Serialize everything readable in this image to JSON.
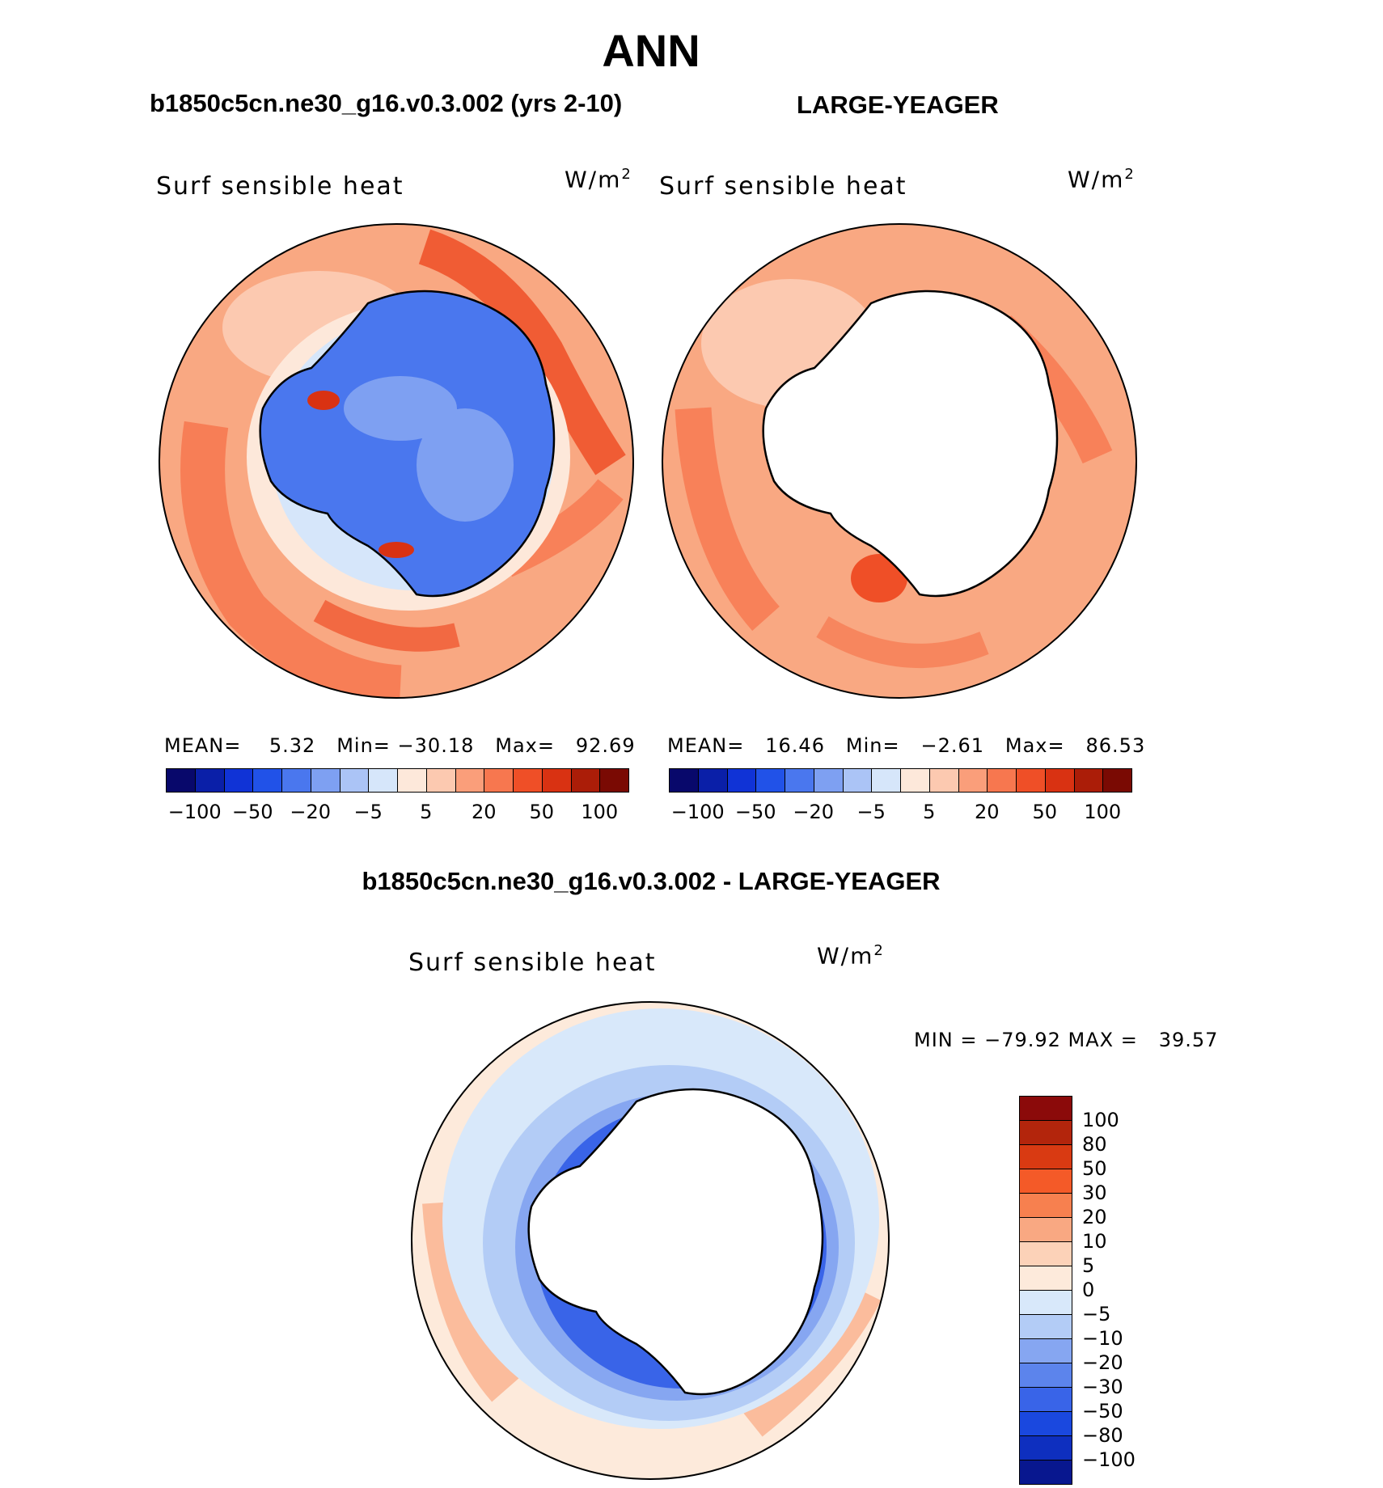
{
  "main_title": "ANN",
  "case_title": "b1850c5cn.ne30_g16.v0.3.002 (yrs 2-10)",
  "ref_title": "LARGE-YEAGER",
  "diff_title": "b1850c5cn.ne30_g16.v0.3.002 - LARGE-YEAGER",
  "variable": "Surf sensible heat",
  "units_base": "W/m",
  "units_exp": "2",
  "panel_case": {
    "mean_label": "MEAN=",
    "mean": "5.32",
    "min_label": "Min=",
    "min": "−30.18",
    "max_label": "Max=",
    "max": "92.69"
  },
  "panel_ref": {
    "mean_label": "MEAN=",
    "mean": "16.46",
    "min_label": "Min=",
    "min": "−2.61",
    "max_label": "Max=",
    "max": "86.53"
  },
  "panel_diff": {
    "minmax_text": "MIN = −79.92 MAX =   39.57"
  },
  "horizontal_colorbar": {
    "colors": [
      "#08086b",
      "#0a1fa8",
      "#1033d6",
      "#2152e8",
      "#4a77ee",
      "#7ea0f2",
      "#abc4f6",
      "#d6e6fa",
      "#fde8da",
      "#fcc9b0",
      "#fa9e7a",
      "#f7774f",
      "#ef4f27",
      "#d93212",
      "#ab1d08",
      "#7a0a03"
    ],
    "labels": [
      "−100",
      "−50",
      "−20",
      "−5",
      "5",
      "20",
      "50",
      "100"
    ]
  },
  "vertical_colorbar": {
    "colors": [
      "#8b0a0a",
      "#b3250c",
      "#d93a12",
      "#f45a28",
      "#f7804f",
      "#f9a882",
      "#fcd2b8",
      "#fdeadb",
      "#d8e8fa",
      "#b3ccf6",
      "#86a6f1",
      "#5c84ec",
      "#3964e8",
      "#1a48df",
      "#0e2fbf",
      "#08178f"
    ],
    "labels": [
      "100",
      "80",
      "50",
      "30",
      "20",
      "10",
      "5",
      "0",
      "−5",
      "−10",
      "−20",
      "−30",
      "−50",
      "−80",
      "−100"
    ]
  },
  "colors": {
    "warm_field": "#f7804f",
    "cold_field": "#4a77ee"
  }
}
